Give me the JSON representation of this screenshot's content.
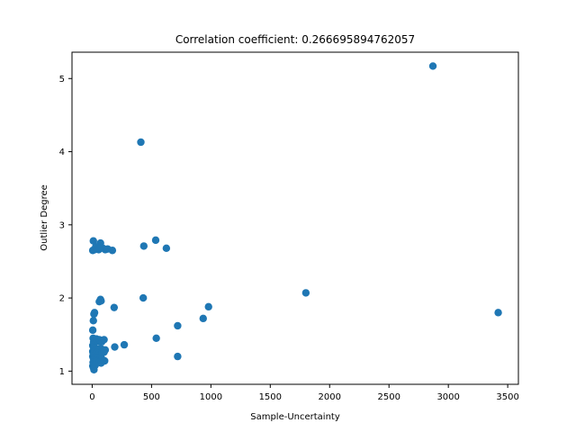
{
  "chart_data": {
    "type": "scatter",
    "title": "Correlation coefficient: 0.266695894762057",
    "xlabel": "Sample-Uncertainty",
    "ylabel": "Outlier Degree",
    "xlim": [
      -170,
      3590
    ],
    "ylim": [
      0.82,
      5.36
    ],
    "xticks": [
      0,
      500,
      1000,
      1500,
      2000,
      2500,
      3000,
      3500
    ],
    "yticks": [
      1,
      2,
      3,
      4,
      5
    ],
    "grid": false,
    "legend": "none",
    "marker_color": "#1f77b4",
    "series": [
      {
        "x": [
          2870,
          3420,
          1800,
          410,
          535,
          435,
          625,
          430,
          980,
          935,
          720,
          185,
          540,
          720,
          270,
          190,
          5,
          10,
          20,
          30,
          40,
          55,
          70,
          90,
          110,
          130,
          170,
          45,
          65,
          10,
          15,
          20,
          60,
          70,
          75,
          5,
          8,
          12,
          15,
          20,
          25,
          30,
          35,
          45,
          50,
          60,
          70,
          80,
          100,
          5,
          10,
          15,
          20,
          25,
          35,
          50,
          65,
          80,
          95,
          110,
          5,
          8,
          12,
          15,
          20,
          30,
          40,
          55,
          70,
          85,
          100,
          5,
          10,
          15,
          20,
          30,
          45,
          60,
          80,
          105,
          8,
          15,
          25,
          40,
          60,
          75,
          5,
          10,
          15,
          25
        ],
        "y": [
          5.17,
          1.8,
          2.07,
          4.13,
          2.79,
          2.71,
          2.68,
          2.0,
          1.88,
          1.72,
          1.62,
          1.87,
          1.45,
          1.2,
          1.36,
          1.33,
          2.65,
          2.78,
          2.66,
          2.7,
          2.67,
          2.66,
          2.75,
          2.68,
          2.66,
          2.67,
          2.65,
          2.69,
          2.68,
          1.69,
          1.78,
          1.8,
          1.95,
          1.98,
          1.96,
          1.56,
          1.45,
          1.4,
          1.38,
          1.44,
          1.42,
          1.4,
          1.44,
          1.43,
          1.41,
          1.43,
          1.42,
          1.4,
          1.43,
          1.35,
          1.33,
          1.3,
          1.32,
          1.28,
          1.3,
          1.29,
          1.31,
          1.3,
          1.28,
          1.29,
          1.27,
          1.25,
          1.24,
          1.22,
          1.26,
          1.23,
          1.25,
          1.24,
          1.22,
          1.25,
          1.26,
          1.2,
          1.18,
          1.16,
          1.17,
          1.15,
          1.18,
          1.16,
          1.17,
          1.14,
          1.12,
          1.1,
          1.11,
          1.13,
          1.12,
          1.11,
          1.07,
          1.05,
          1.02,
          1.08
        ]
      }
    ]
  }
}
